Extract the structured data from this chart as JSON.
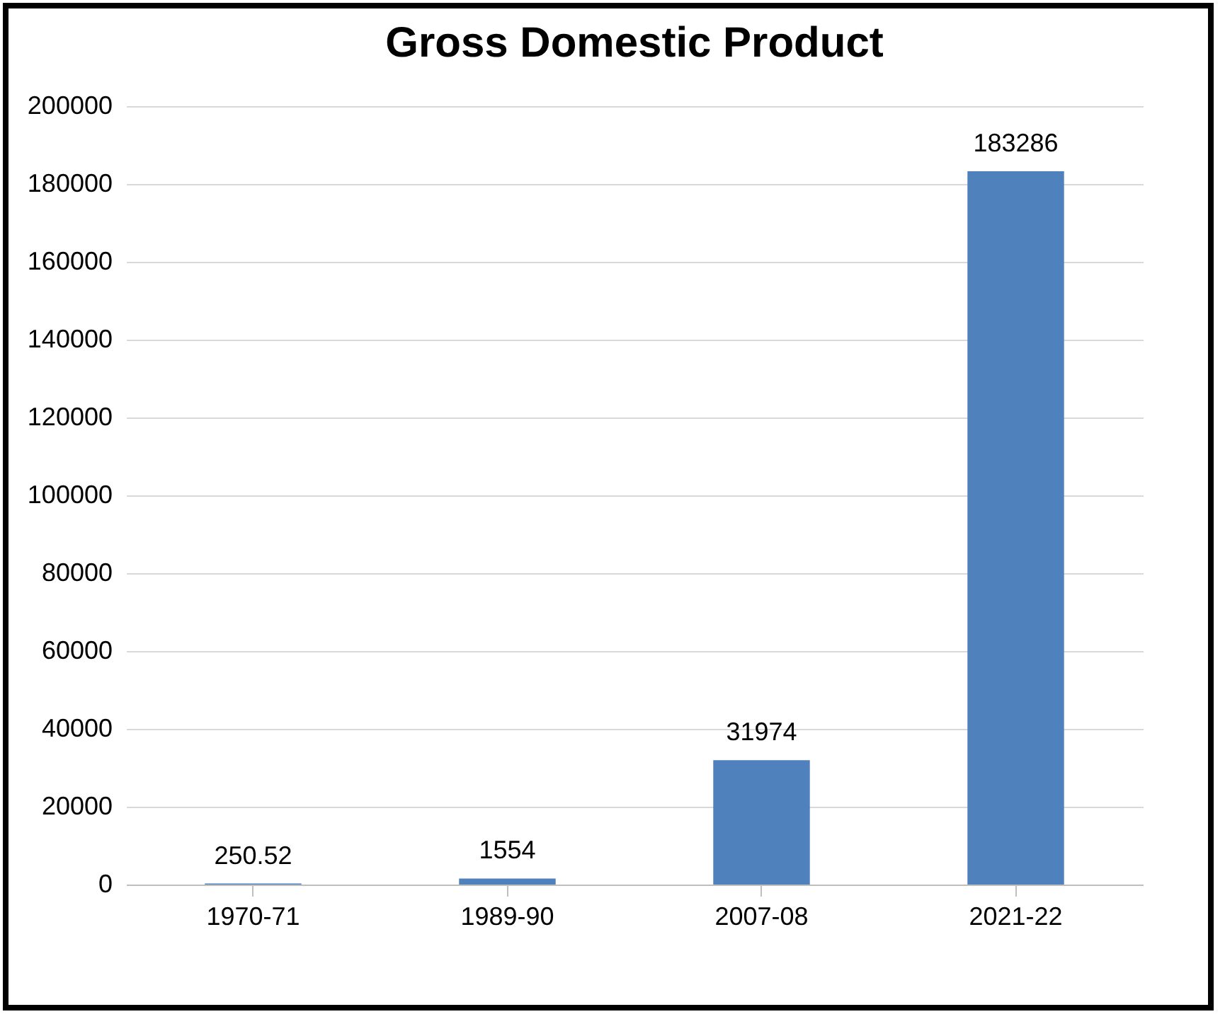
{
  "chart_data": {
    "type": "bar",
    "title": "Gross Domestic Product",
    "categories": [
      "1970-71",
      "1989-90",
      "2007-08",
      "2021-22"
    ],
    "values": [
      250.52,
      1554,
      31974,
      183286
    ],
    "color": "#4f81bd",
    "ylim": [
      0,
      200000
    ],
    "yticks": [
      0,
      20000,
      40000,
      60000,
      80000,
      100000,
      120000,
      140000,
      160000,
      180000,
      200000
    ],
    "grid": "y",
    "data_labels": true
  }
}
